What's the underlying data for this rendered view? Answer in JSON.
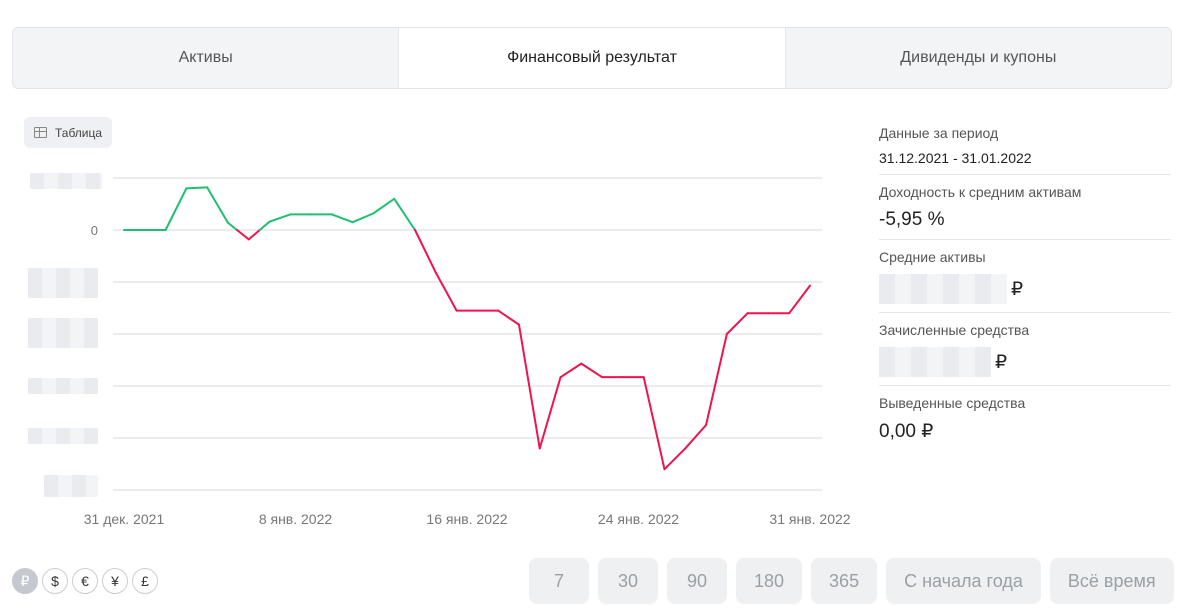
{
  "tabs": [
    {
      "label": "Активы",
      "active": false
    },
    {
      "label": "Финансовый результат",
      "active": true
    },
    {
      "label": "Дивиденды и купоны",
      "active": false
    }
  ],
  "table_button": {
    "label": "Таблица",
    "icon": "table-icon"
  },
  "summary": {
    "period_label": "Данные за период",
    "period_value": "31.12.2021 - 31.01.2022",
    "yield_label": "Доходность к средним активам",
    "yield_value": "-5,95 %",
    "avg_assets_label": "Средние активы",
    "avg_assets_currency": "₽",
    "credited_label": "Зачисленные средства",
    "credited_currency": "₽",
    "withdrawn_label": "Выведенные средства",
    "withdrawn_value": "0,00 ₽"
  },
  "currencies": [
    {
      "symbol": "₽",
      "name": "rub",
      "active": true
    },
    {
      "symbol": "$",
      "name": "usd",
      "active": false
    },
    {
      "symbol": "€",
      "name": "eur",
      "active": false
    },
    {
      "symbol": "¥",
      "name": "cny",
      "active": false
    },
    {
      "symbol": "£",
      "name": "gbp",
      "active": false
    }
  ],
  "periods": [
    "7",
    "30",
    "90",
    "180",
    "365",
    "С начала года",
    "Всё время"
  ],
  "colors": {
    "positive": "#1dbf73",
    "negative": "#f0134d",
    "grid": "#d5d8dc"
  },
  "chart_data": {
    "type": "line",
    "title": "",
    "x_tick_labels": [
      "31 дек. 2021",
      "8 янв. 2022",
      "16 янв. 2022",
      "24 янв. 2022",
      "31 янв. 2022"
    ],
    "y_tick_labels_visible": [
      "0"
    ],
    "y_tick_count": 7,
    "y_units": "gridline steps (axis values hidden)",
    "grid": true,
    "series": [
      {
        "values": [
          0,
          0,
          0,
          0.8,
          0.82,
          0.14,
          -0.18,
          0.16,
          0.3,
          0.3,
          0.3,
          0.15,
          0.32,
          0.6,
          0,
          -0.82,
          -1.55,
          -1.55,
          -1.55,
          -1.82,
          -4.2,
          -2.83,
          -2.57,
          -2.83,
          -2.83,
          -2.83,
          -4.6,
          -4.2,
          -3.75,
          -2.0,
          -1.6,
          -1.6,
          -1.6,
          -1.07
        ]
      }
    ]
  }
}
